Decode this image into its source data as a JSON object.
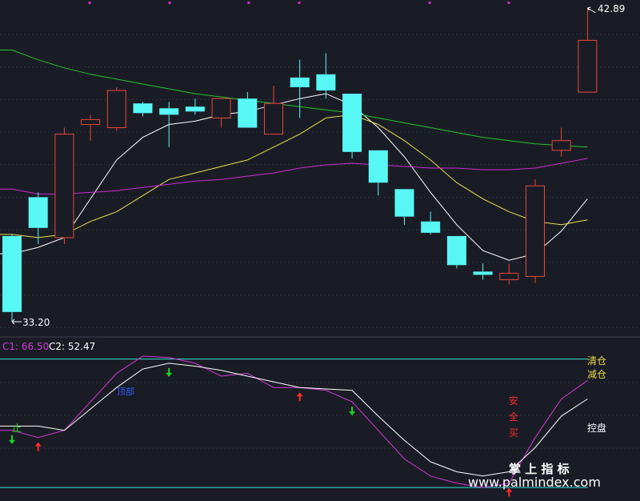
{
  "colors": {
    "background": "#1a1c25",
    "grid": "#2c3340",
    "up_candle": "#e8463c",
    "down_candle": "#57f7f5",
    "ma_white": "#ffffff",
    "ma_yellow": "#e6e34a",
    "ma_magenta": "#cf2bd6",
    "ma_green": "#25c52d",
    "c1": "#d23ad6",
    "c2": "#ffffff",
    "cyan_line": "#34e0d6",
    "arrow_up": "#ff2a2a",
    "arrow_down": "#1ed31e",
    "label_yellow": "#e8d84b",
    "label_red": "#ff2a2a",
    "label_green": "#2ad62a",
    "label_white": "#ffffff",
    "label_blue": "#2a5cff"
  },
  "chart_data": [
    {
      "type": "candlestick",
      "price_labels": {
        "high": "42.89",
        "low": "33.20"
      },
      "candles": [
        {
          "open": 35.85,
          "high": 35.9,
          "low": 33.2,
          "close": 33.5
        },
        {
          "open": 37.05,
          "high": 37.2,
          "low": 35.6,
          "close": 36.1
        },
        {
          "open": 35.8,
          "high": 39.2,
          "low": 35.6,
          "close": 39.0
        },
        {
          "open": 39.3,
          "high": 39.6,
          "low": 38.8,
          "close": 39.45
        },
        {
          "open": 39.2,
          "high": 40.45,
          "low": 39.1,
          "close": 40.35
        },
        {
          "open": 39.95,
          "high": 40.0,
          "low": 39.55,
          "close": 39.65
        },
        {
          "open": 39.8,
          "high": 40.0,
          "low": 38.6,
          "close": 39.6
        },
        {
          "open": 39.85,
          "high": 40.1,
          "low": 39.6,
          "close": 39.7
        },
        {
          "open": 39.5,
          "high": 40.05,
          "low": 39.2,
          "close": 40.1
        },
        {
          "open": 40.1,
          "high": 40.3,
          "low": 39.2,
          "close": 39.2
        },
        {
          "open": 39.0,
          "high": 40.5,
          "low": 39.0,
          "close": 39.95
        },
        {
          "open": 40.75,
          "high": 41.3,
          "low": 39.5,
          "close": 40.45
        },
        {
          "open": 40.85,
          "high": 41.5,
          "low": 40.1,
          "close": 40.35
        },
        {
          "open": 40.25,
          "high": 40.25,
          "low": 38.25,
          "close": 38.45
        },
        {
          "open": 38.5,
          "high": 38.5,
          "low": 37.1,
          "close": 37.5
        },
        {
          "open": 37.3,
          "high": 37.3,
          "low": 36.2,
          "close": 36.45
        },
        {
          "open": 36.3,
          "high": 36.6,
          "low": 35.9,
          "close": 35.95
        },
        {
          "open": 35.85,
          "high": 35.85,
          "low": 34.85,
          "close": 34.95
        },
        {
          "open": 34.75,
          "high": 35.0,
          "low": 34.5,
          "close": 34.65
        },
        {
          "open": 34.5,
          "high": 35.0,
          "low": 34.35,
          "close": 34.7
        },
        {
          "open": 34.6,
          "high": 37.6,
          "low": 34.4,
          "close": 37.4
        },
        {
          "open": 38.5,
          "high": 39.2,
          "low": 38.3,
          "close": 38.8
        },
        {
          "open": 40.3,
          "high": 42.9,
          "low": 40.3,
          "close": 41.9
        }
      ],
      "moving_averages": [
        {
          "color_key": "ma_white",
          "values": [
            35.3,
            35.5,
            35.8,
            37.0,
            38.2,
            38.9,
            39.3,
            39.4,
            39.6,
            39.7,
            39.9,
            40.1,
            40.25,
            39.9,
            39.2,
            38.3,
            37.2,
            36.2,
            35.4,
            35.1,
            35.3,
            36.0,
            37.0
          ]
        },
        {
          "color_key": "ma_yellow",
          "values": [
            35.9,
            35.8,
            35.9,
            36.3,
            36.6,
            37.1,
            37.6,
            37.8,
            38.0,
            38.2,
            38.6,
            39.0,
            39.5,
            39.6,
            39.3,
            38.8,
            38.2,
            37.5,
            37.0,
            36.6,
            36.3,
            36.2,
            36.35
          ]
        },
        {
          "color_key": "ma_magenta",
          "values": [
            37.3,
            37.15,
            37.15,
            37.2,
            37.25,
            37.35,
            37.45,
            37.55,
            37.6,
            37.7,
            37.8,
            37.95,
            38.05,
            38.1,
            38.05,
            38.0,
            37.95,
            37.95,
            37.9,
            37.9,
            37.95,
            38.1,
            38.25
          ]
        },
        {
          "color_key": "ma_green",
          "values": [
            41.6,
            41.3,
            41.05,
            40.85,
            40.7,
            40.55,
            40.4,
            40.25,
            40.15,
            40.05,
            39.95,
            39.85,
            39.75,
            39.65,
            39.5,
            39.35,
            39.2,
            39.05,
            38.9,
            38.8,
            38.7,
            38.65,
            38.6
          ]
        }
      ]
    },
    {
      "type": "line",
      "legend": [
        {
          "label": "C1",
          "value": "66.50"
        },
        {
          "label": "C2",
          "value": "52.47"
        }
      ],
      "reference_lines": [
        90,
        0
      ],
      "series": [
        {
          "name": "C1",
          "color_key": "c1",
          "values": [
            40,
            35,
            40,
            60,
            80,
            92,
            91,
            87,
            78,
            80,
            70,
            70,
            68,
            60,
            40,
            20,
            8,
            3,
            0,
            3,
            35,
            62,
            75
          ]
        },
        {
          "name": "C2",
          "color_key": "c2",
          "values": [
            43,
            43,
            40,
            55,
            70,
            83,
            87,
            85,
            82,
            78,
            74,
            70,
            69,
            68,
            50,
            33,
            18,
            11,
            8,
            11,
            28,
            50,
            62
          ]
        }
      ],
      "markers": [
        {
          "type": "down",
          "index": 0
        },
        {
          "type": "up",
          "index": 1
        },
        {
          "type": "down",
          "index": 6
        },
        {
          "type": "up",
          "index": 11
        },
        {
          "type": "down",
          "index": 13
        },
        {
          "type": "up",
          "index": 19
        }
      ]
    }
  ],
  "indicator_labels": {
    "clear": "清仓",
    "reduce": "减仓",
    "stop": "止",
    "control": "控盘",
    "safe_1": "安",
    "safe_2": "全",
    "safe_3": "买",
    "blue_tag": "顶部"
  },
  "watermark": {
    "title": "掌 上 指 标",
    "url": "www.palmindex.com"
  }
}
